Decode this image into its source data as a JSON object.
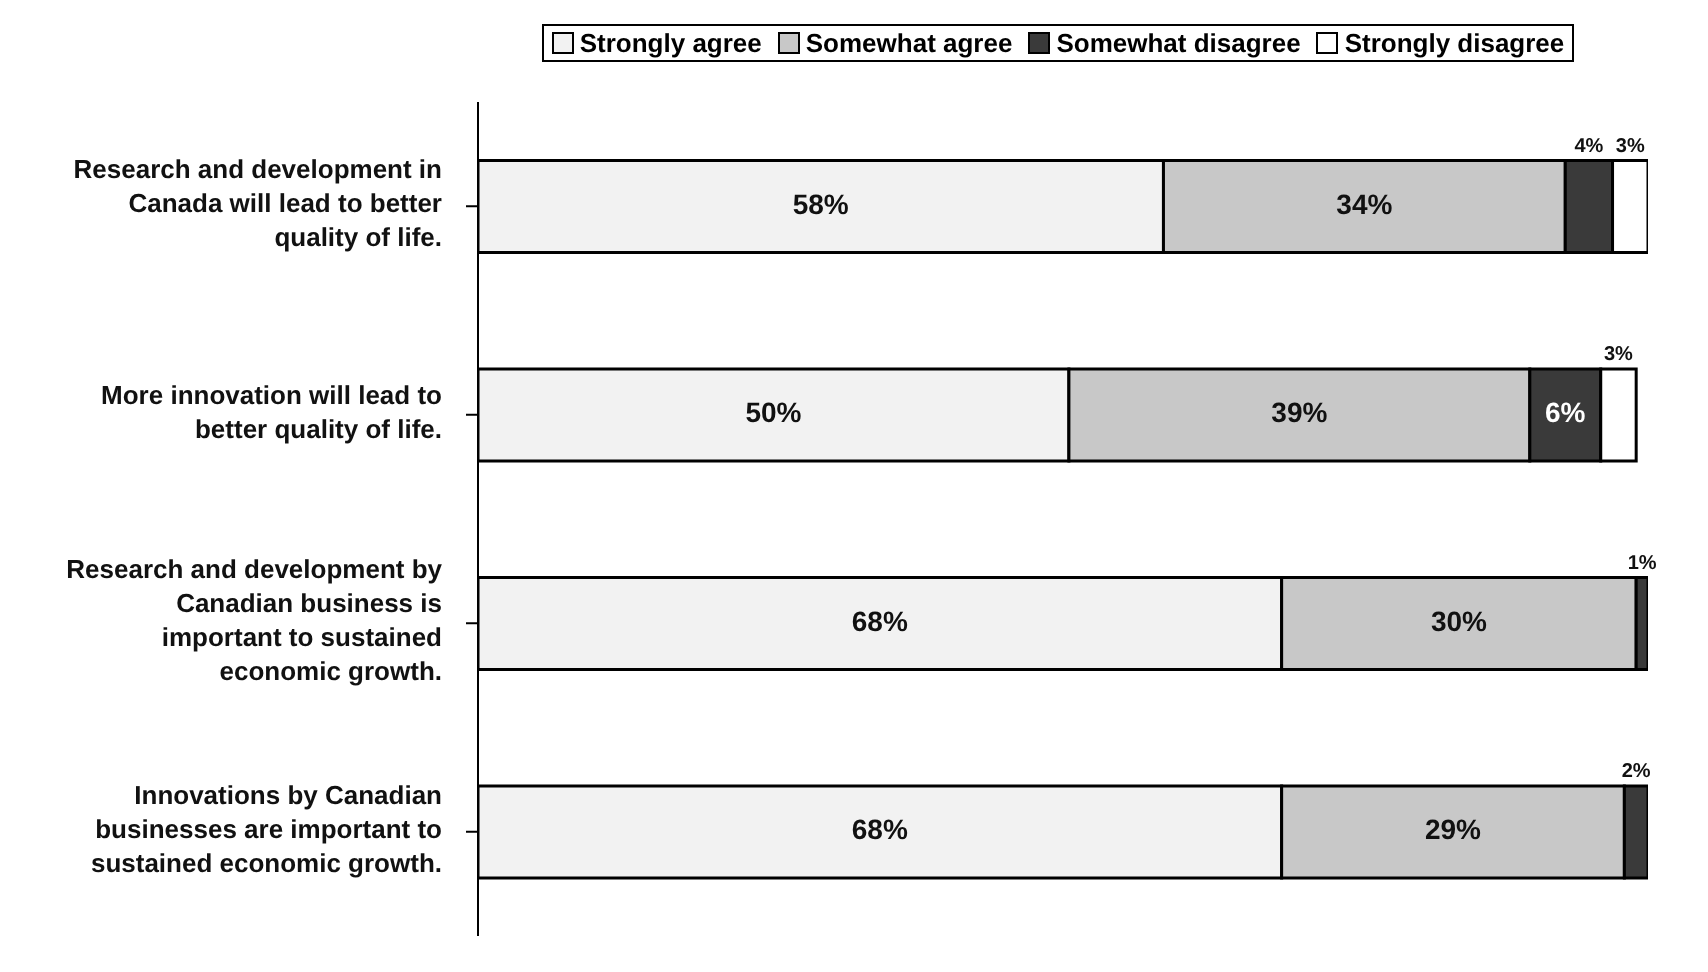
{
  "chart_data": {
    "type": "bar",
    "orientation": "horizontal",
    "stacked": true,
    "categories": [
      "Research and development in Canada will lead to better quality of life.",
      "More innovation will lead to better quality of life.",
      "Research and development by Canadian business is important to sustained economic growth.",
      "Innovations by Canadian businesses are important to sustained economic growth."
    ],
    "series": [
      {
        "name": "Strongly agree",
        "color": "#f2f2f2",
        "values": [
          58,
          50,
          68,
          68
        ],
        "value_labels": [
          "58%",
          "50%",
          "68%",
          "68%"
        ]
      },
      {
        "name": "Somewhat agree",
        "color": "#c8c8c8",
        "values": [
          34,
          39,
          30,
          29
        ],
        "value_labels": [
          "34%",
          "39%",
          "30%",
          "29%"
        ]
      },
      {
        "name": "Somewhat disagree",
        "color": "#3a3a3a",
        "values": [
          4,
          6,
          1,
          2
        ],
        "value_labels": [
          "4%",
          "6%",
          "1%",
          "2%"
        ]
      },
      {
        "name": "Strongly disagree",
        "color": "#ffffff",
        "values": [
          3,
          3,
          null,
          null
        ],
        "value_labels": [
          "3%",
          "3%",
          null,
          null
        ]
      }
    ],
    "legend": "top",
    "grid": false,
    "tick_labels": "y"
  }
}
